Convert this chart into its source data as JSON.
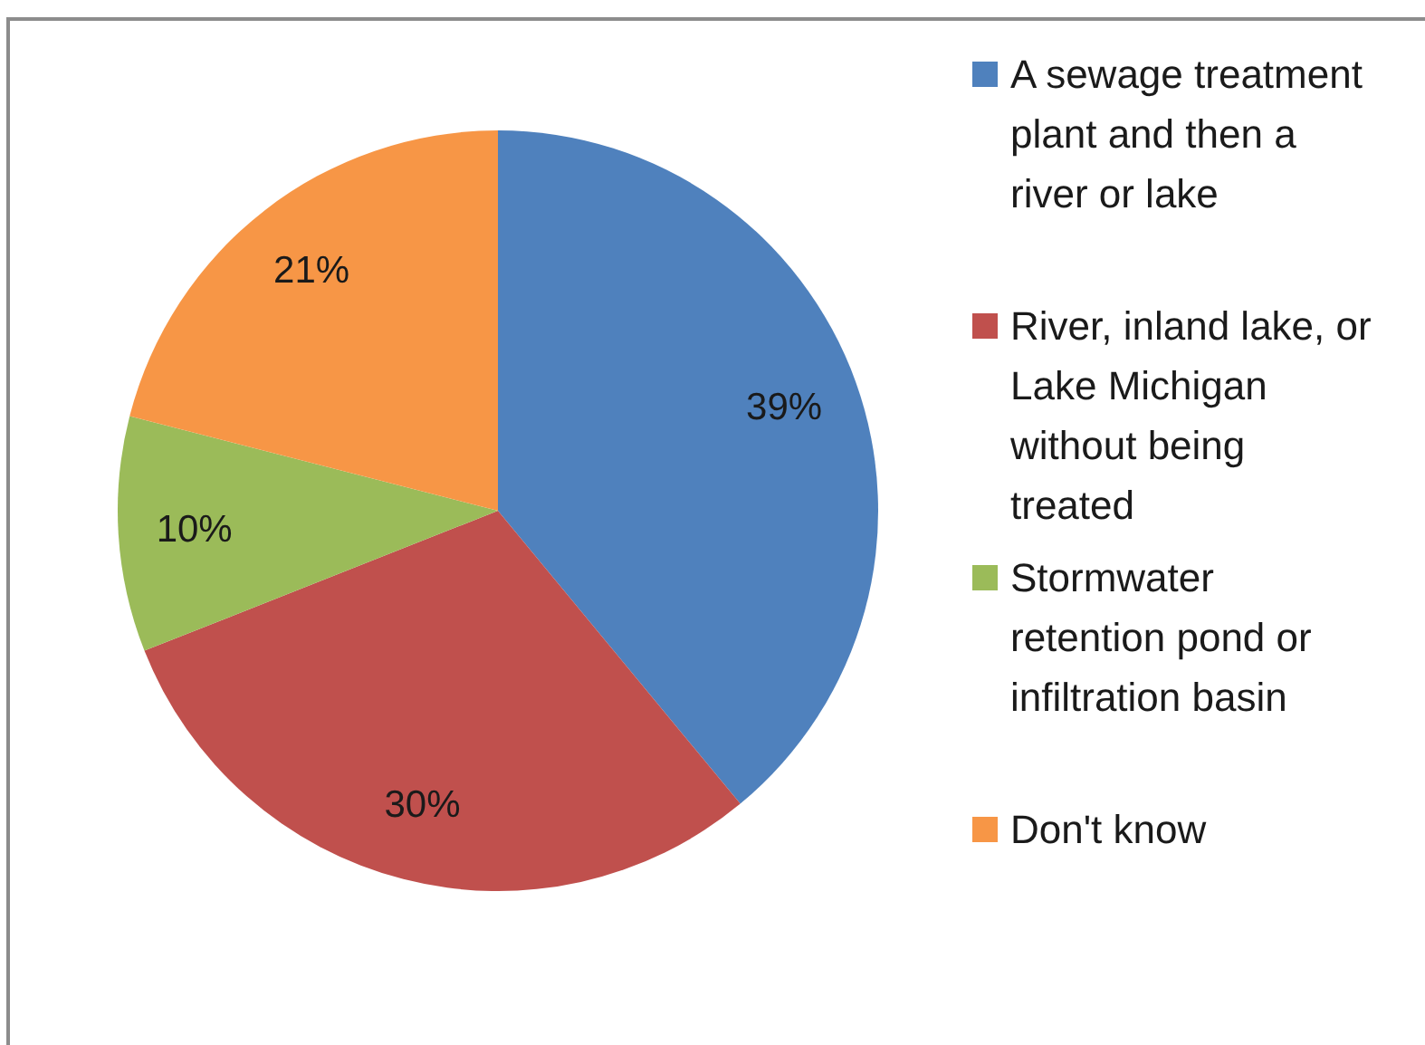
{
  "chart_data": {
    "type": "pie",
    "categories": [
      "A sewage treatment plant and then a river or lake",
      "River, inland lake, or Lake Michigan without being treated",
      "Stormwater retention pond or infiltration basin",
      "Don't know"
    ],
    "values": [
      39,
      30,
      10,
      21
    ],
    "colors": [
      "#4f81bd",
      "#c0504d",
      "#9bbb59",
      "#f79646"
    ],
    "value_labels": [
      "39%",
      "30%",
      "10%",
      "21%"
    ],
    "legend": "right"
  }
}
